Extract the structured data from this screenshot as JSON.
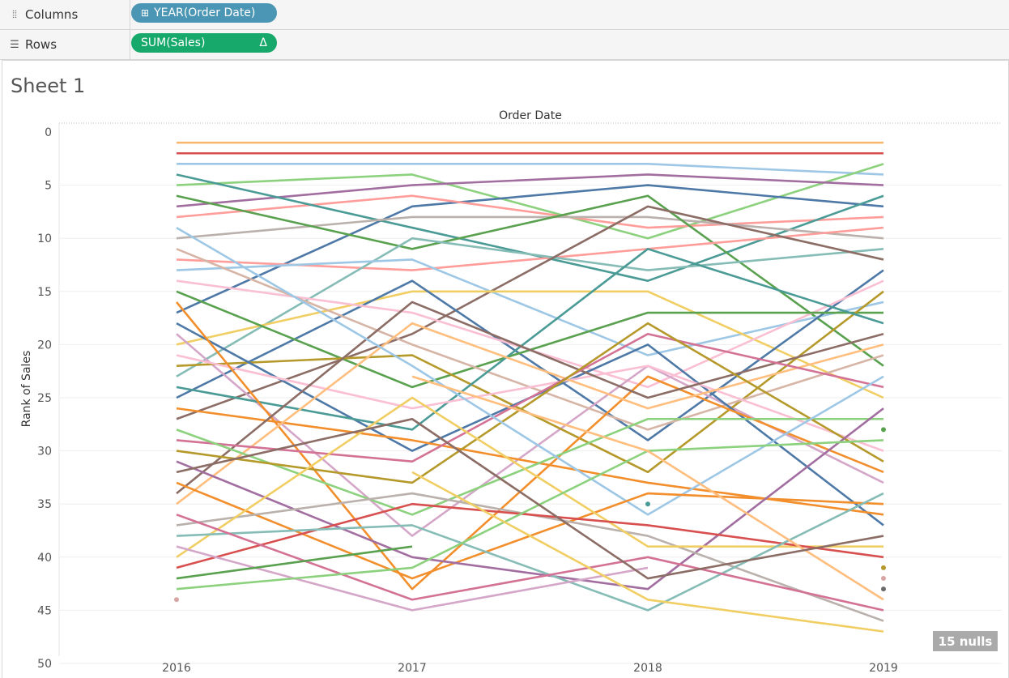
{
  "columns_shelf": {
    "label": "Columns",
    "icon": "columns-icon",
    "pill": "YEAR(Order Date)",
    "pill_icon": "expand-plus-icon"
  },
  "rows_shelf": {
    "label": "Rows",
    "icon": "rows-icon",
    "pill": "SUM(Sales)",
    "pill_badge": "Δ"
  },
  "sheet": {
    "title": "Sheet 1"
  },
  "nulls_badge": "15 nulls",
  "chart_data": {
    "type": "line",
    "title": "Order Date",
    "xlabel": "",
    "ylabel": "Rank of Sales",
    "x": [
      "2016",
      "2017",
      "2018",
      "2019"
    ],
    "ylim": [
      0,
      50
    ],
    "y_reversed": true,
    "y_ticks": [
      0,
      5,
      10,
      15,
      20,
      25,
      30,
      35,
      40,
      45,
      50
    ],
    "grid": "horizontal",
    "legend": "none",
    "series": [
      {
        "color": "#f7b66b",
        "values": [
          1,
          1,
          1,
          1
        ]
      },
      {
        "color": "#d84f4f",
        "values": [
          2,
          2,
          2,
          2
        ]
      },
      {
        "color": "#9dc7e5",
        "values": [
          3,
          3,
          3,
          4
        ]
      },
      {
        "color": "#8cd17d",
        "values": [
          5,
          4,
          10,
          3
        ]
      },
      {
        "color": "#a26ea0",
        "values": [
          7,
          5,
          4,
          5
        ]
      },
      {
        "color": "#4e79a7",
        "values": [
          17,
          7,
          5,
          7
        ]
      },
      {
        "color": "#ff9d9a",
        "values": [
          8,
          6,
          9,
          8
        ]
      },
      {
        "color": "#4a9a95",
        "values": [
          4,
          9,
          14,
          6
        ]
      },
      {
        "color": "#bab0ac",
        "values": [
          10,
          8,
          8,
          10
        ]
      },
      {
        "color": "#59a14f",
        "values": [
          6,
          11,
          6,
          22
        ]
      },
      {
        "color": "#ff9d9a",
        "values": [
          12,
          13,
          11,
          9
        ]
      },
      {
        "color": "#86bcb6",
        "values": [
          23,
          10,
          13,
          11
        ]
      },
      {
        "color": "#8c6d66",
        "values": [
          27,
          19,
          7,
          12
        ]
      },
      {
        "color": "#9dc7e5",
        "values": [
          13,
          12,
          21,
          16
        ]
      },
      {
        "color": "#f1ce63",
        "values": [
          20,
          15,
          15,
          25
        ]
      },
      {
        "color": "#4e79a7",
        "values": [
          25,
          14,
          29,
          13
        ]
      },
      {
        "color": "#fabfd2",
        "values": [
          14,
          17,
          24,
          14
        ]
      },
      {
        "color": "#d4a6c8",
        "values": [
          19,
          38,
          22,
          33
        ]
      },
      {
        "color": "#59a14f",
        "values": [
          15,
          24,
          17,
          17
        ]
      },
      {
        "color": "#b5992b",
        "values": [
          22,
          21,
          32,
          15
        ]
      },
      {
        "color": "#d7b5a6",
        "values": [
          11,
          20,
          28,
          21
        ]
      },
      {
        "color": "#4e79a7",
        "values": [
          18,
          30,
          20,
          37
        ]
      },
      {
        "color": "#4a9a95",
        "values": [
          24,
          28,
          11,
          18
        ]
      },
      {
        "color": "#fabfd2",
        "values": [
          21,
          26,
          22,
          30
        ]
      },
      {
        "color": "#f28e2b",
        "values": [
          26,
          29,
          33,
          36
        ]
      },
      {
        "color": "#f28e2b",
        "values": [
          16,
          43,
          23,
          32
        ]
      },
      {
        "color": "#ffbe7d",
        "values": [
          35,
          18,
          26,
          20
        ]
      },
      {
        "color": "#8c6d66",
        "values": [
          34,
          16,
          25,
          19
        ]
      },
      {
        "color": "#d37295",
        "values": [
          29,
          31,
          19,
          24
        ]
      },
      {
        "color": "#8cd17d",
        "values": [
          28,
          36,
          27,
          27
        ]
      },
      {
        "color": "#b5992b",
        "values": [
          30,
          33,
          18,
          31
        ]
      },
      {
        "color": "#9dc7e5",
        "values": [
          9,
          22,
          36,
          23
        ]
      },
      {
        "color": "#f28e2b",
        "values": [
          33,
          42,
          34,
          35
        ]
      },
      {
        "color": "#a26ea0",
        "values": [
          31,
          40,
          43,
          26
        ]
      },
      {
        "color": "#bab0ac",
        "values": [
          37,
          34,
          38,
          46
        ]
      },
      {
        "color": "#f1ce63",
        "values": [
          40,
          25,
          39,
          39
        ]
      },
      {
        "color": "#d84f4f",
        "values": [
          41,
          35,
          37,
          40
        ]
      },
      {
        "color": "#86bcb6",
        "values": [
          38,
          37,
          45,
          34
        ]
      },
      {
        "color": "#d37295",
        "values": [
          36,
          44,
          40,
          45
        ]
      },
      {
        "color": "#d4a6c8",
        "values": [
          39,
          45,
          41,
          null
        ]
      },
      {
        "color": "#8cd17d",
        "values": [
          43,
          41,
          30,
          29
        ]
      },
      {
        "color": "#59a14f",
        "values": [
          42,
          39,
          null,
          null
        ]
      },
      {
        "color": "#f1ce63",
        "values": [
          null,
          32,
          44,
          47
        ]
      },
      {
        "color": "#ffbe7d",
        "values": [
          null,
          23,
          30,
          44
        ]
      },
      {
        "color": "#8c6d66",
        "values": [
          32,
          27,
          42,
          38
        ]
      }
    ],
    "points": [
      {
        "x": "2016",
        "y": 44,
        "color": "#d8a5a5"
      },
      {
        "x": "2018",
        "y": 35,
        "color": "#4a9a95"
      },
      {
        "x": "2019",
        "y": 28,
        "color": "#59a14f"
      },
      {
        "x": "2019",
        "y": 41,
        "color": "#b5992b"
      },
      {
        "x": "2019",
        "y": 42,
        "color": "#d8a5a5"
      },
      {
        "x": "2019",
        "y": 43,
        "color": "#6b6b6b"
      }
    ]
  }
}
